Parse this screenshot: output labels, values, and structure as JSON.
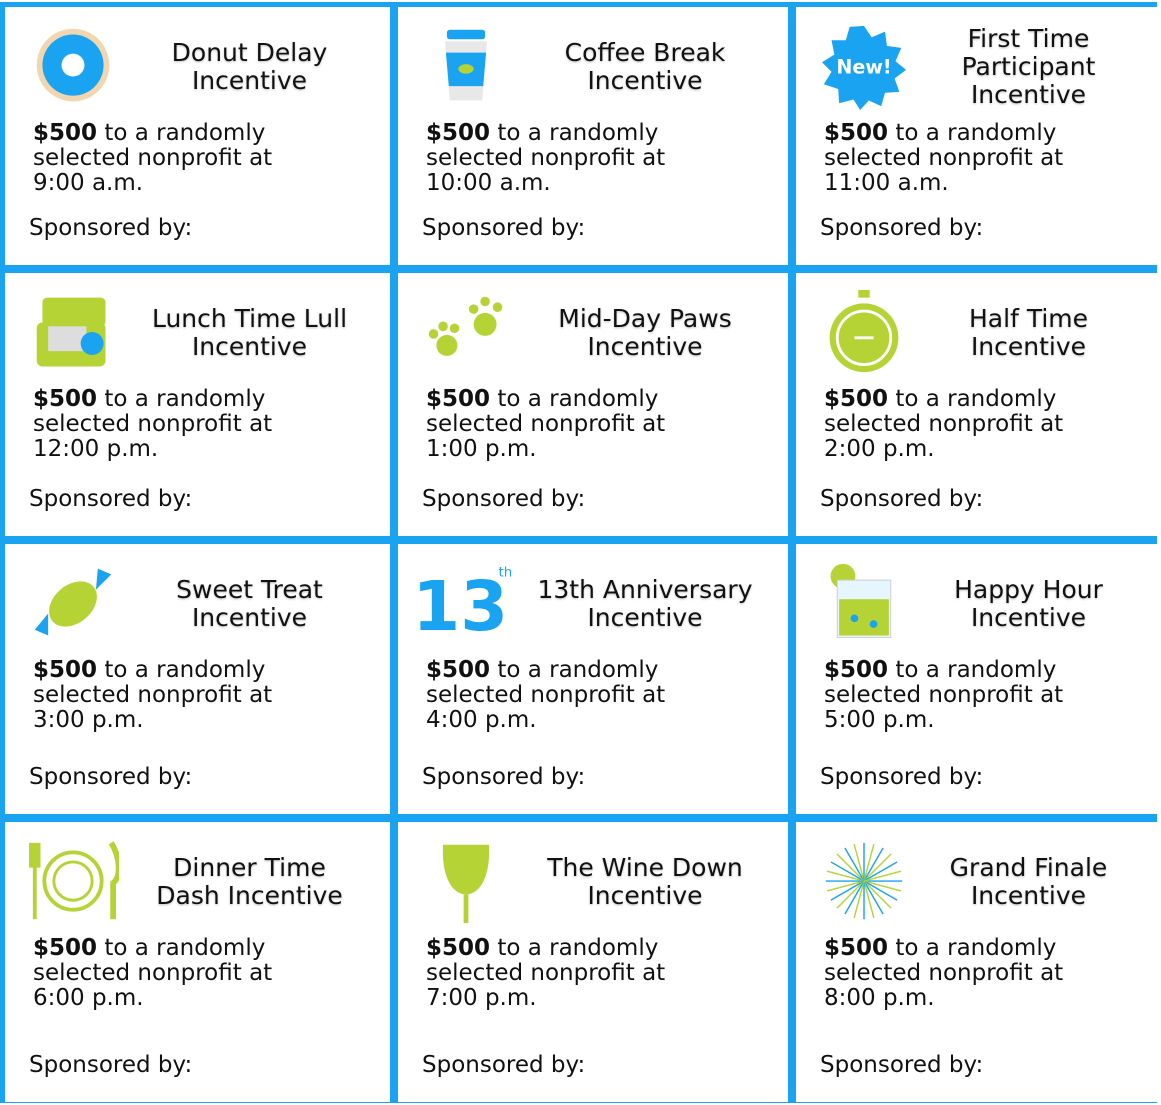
{
  "cards": [
    {
      "title": [
        "Donut Delay",
        "Incentive"
      ],
      "amount": "$500",
      "text": "to a randomly selected nonprofit at",
      "time": "9:00 a.m.",
      "sponsor": "Sponsored by:"
    },
    {
      "title": [
        "Coffee Break",
        "Incentive"
      ],
      "amount": "$500",
      "text": "to a randomly selected nonprofit at",
      "time": "10:00 a.m.",
      "sponsor": "Sponsored by:"
    },
    {
      "title": [
        "First Time",
        "Participant",
        "Incentive"
      ],
      "icon_text": "New!",
      "amount": "$500",
      "text": "to a randomly selected nonprofit at",
      "time": "11:00 a.m.",
      "sponsor": "Sponsored by:"
    },
    {
      "title": [
        "Lunch Time Lull",
        "Incentive"
      ],
      "amount": "$500",
      "text": "to a randomly selected nonprofit at",
      "time": "12:00 p.m.",
      "sponsor": "Sponsored by:"
    },
    {
      "title": [
        "Mid-Day Paws",
        "Incentive"
      ],
      "amount": "$500",
      "text": "to a randomly selected nonprofit at",
      "time": "1:00 p.m.",
      "sponsor": "Sponsored by:"
    },
    {
      "title": [
        "Half Time",
        "Incentive"
      ],
      "amount": "$500",
      "text": "to a randomly selected nonprofit at",
      "time": "2:00 p.m.",
      "sponsor": "Sponsored by:"
    },
    {
      "title": [
        "Sweet Treat",
        "Incentive"
      ],
      "amount": "$500",
      "text": "to a randomly selected nonprofit at",
      "time": "3:00 p.m.",
      "sponsor": "Sponsored by:"
    },
    {
      "title": [
        "13th Anniversary",
        "Incentive"
      ],
      "icon_text": "13",
      "icon_sup": "th",
      "amount": "$500",
      "text": "to a randomly selected nonprofit at",
      "time": "4:00 p.m.",
      "sponsor": "Sponsored by:"
    },
    {
      "title": [
        "Happy Hour",
        "Incentive"
      ],
      "amount": "$500",
      "text": "to a randomly selected nonprofit at",
      "time": "5:00 p.m.",
      "sponsor": "Sponsored by:"
    },
    {
      "title": [
        "Dinner Time",
        "Dash Incentive"
      ],
      "amount": "$500",
      "text": "to a randomly selected nonprofit at",
      "time": "6:00 p.m.",
      "sponsor": "Sponsored by:"
    },
    {
      "title": [
        "The Wine Down",
        "Incentive"
      ],
      "amount": "$500",
      "text": "to a randomly selected nonprofit at",
      "time": "7:00 p.m.",
      "sponsor": "Sponsored by:"
    },
    {
      "title": [
        "Grand Finale",
        "Incentive"
      ],
      "amount": "$500",
      "text": "to a randomly selected nonprofit at",
      "time": "8:00 p.m.",
      "sponsor": "Sponsored by:"
    }
  ]
}
